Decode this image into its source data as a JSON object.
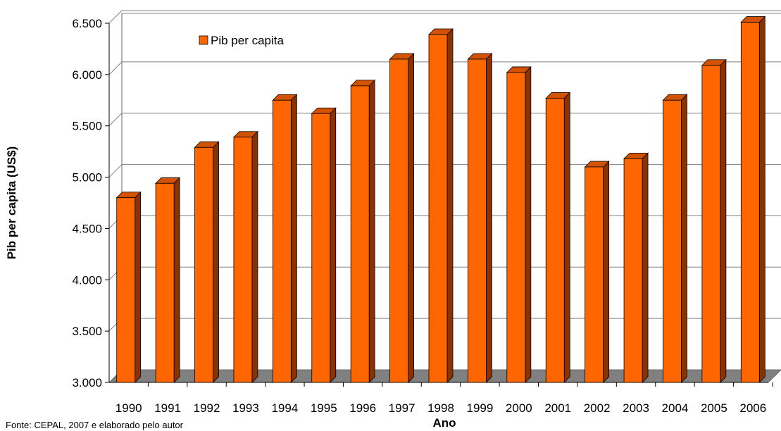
{
  "chart_data": {
    "type": "bar",
    "title": "",
    "xlabel": "Ano",
    "ylabel": "Pib per capita (US$)",
    "categories": [
      "1990",
      "1991",
      "1992",
      "1993",
      "1994",
      "1995",
      "1996",
      "1997",
      "1998",
      "1999",
      "2000",
      "2001",
      "2002",
      "2003",
      "2004",
      "2005",
      "2006"
    ],
    "series": [
      {
        "name": "Pib per capita",
        "values": [
          4800,
          4940,
          5290,
          5390,
          5750,
          5620,
          5890,
          6150,
          6390,
          6150,
          6020,
          5770,
          5100,
          5180,
          5750,
          6090,
          6510
        ]
      }
    ],
    "ylim": [
      3000,
      6500
    ],
    "yticks": [
      "3.000",
      "3.500",
      "4.000",
      "4.500",
      "5.000",
      "5.500",
      "6.000",
      "6.500"
    ],
    "ytick_values": [
      3000,
      3500,
      4000,
      4500,
      5000,
      5500,
      6000,
      6500
    ],
    "grid": true,
    "legend_position": "top-left",
    "colors": {
      "bar_front": "#ff6600",
      "bar_side": "#8a3300",
      "bar_top": "#d25200",
      "floor": "#808080",
      "grid": "#808080"
    }
  },
  "source_note": "Fonte: CEPAL, 2007 e elaborado pelo autor"
}
